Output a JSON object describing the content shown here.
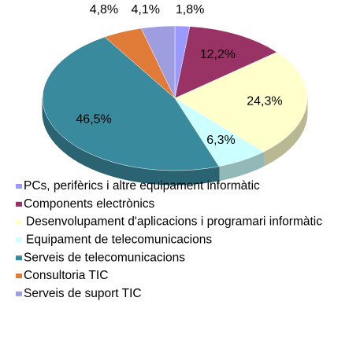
{
  "chart_data": {
    "type": "pie",
    "categories": [
      "PCs, perifèrics i altre equipament informàtic",
      "Components electrònics",
      "Desenvolupament d'aplicacions i programari informàtic",
      "Equipament de telecomunicacions",
      "Serveis de telecomunicacions",
      "Consultoria TIC",
      "Serveis de suport TIC"
    ],
    "values": [
      1.8,
      12.2,
      24.3,
      6.3,
      46.5,
      4.8,
      4.1
    ],
    "value_labels": [
      "1,8%",
      "12,2%",
      "24,3%",
      "6,3%",
      "46,5%",
      "4,8%",
      "4,1%"
    ],
    "colors": [
      "#9999ff",
      "#993366",
      "#ffffcc",
      "#ccffff",
      "#3a8a9e",
      "#e07b39",
      "#9d9de0"
    ],
    "legend": "bottom"
  }
}
